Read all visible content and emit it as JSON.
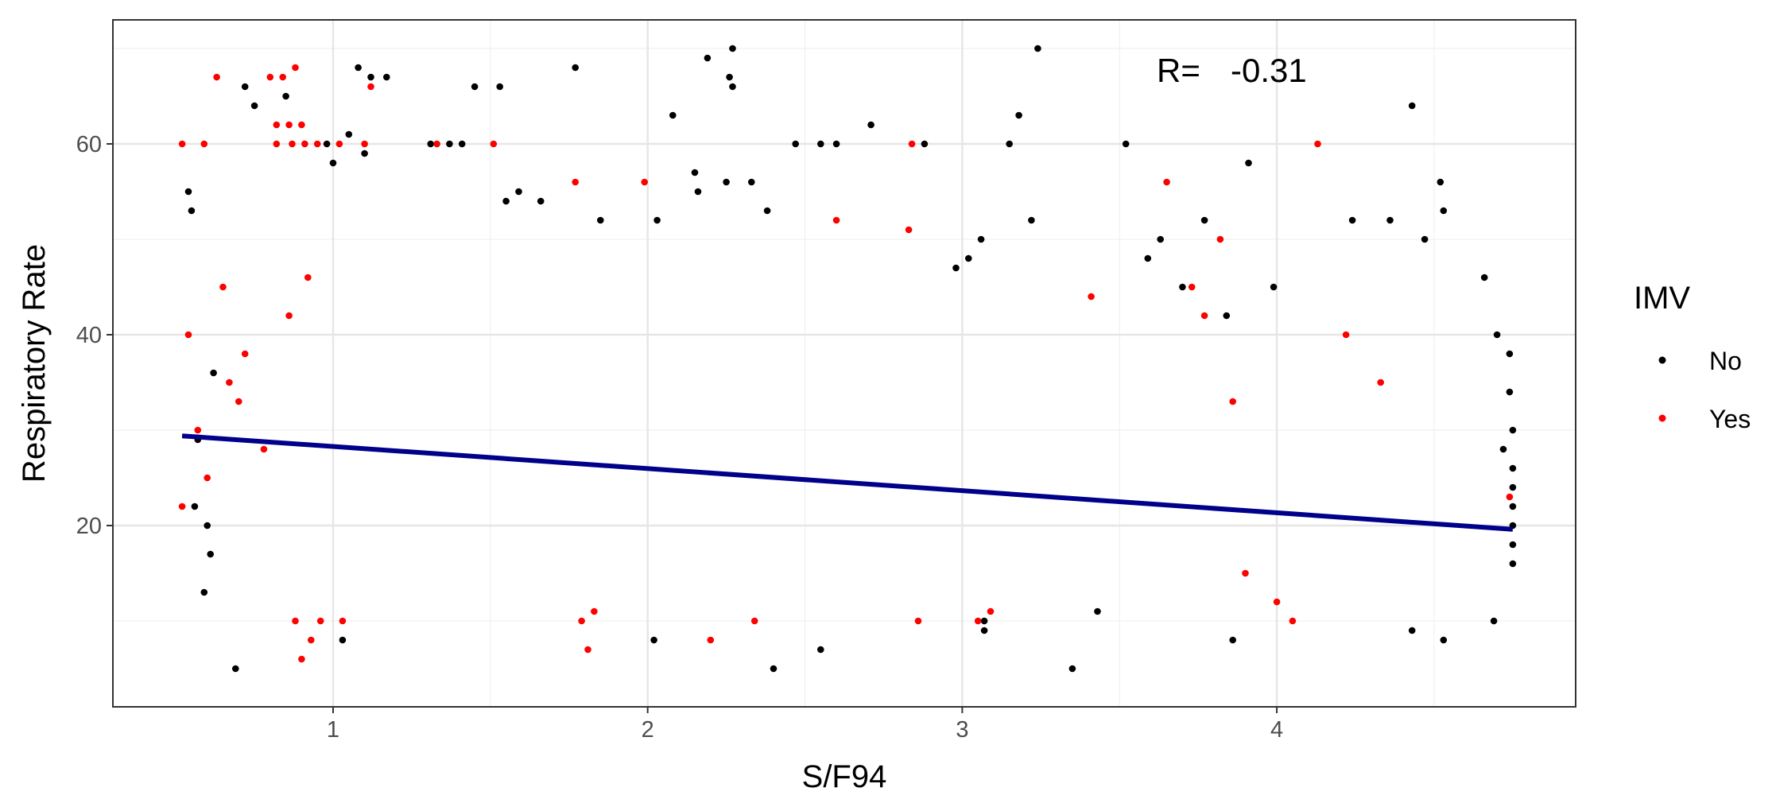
{
  "chart_data": {
    "type": "scatter",
    "xlabel": "S/F94",
    "ylabel": "Respiratory Rate",
    "xlim": [
      0.3,
      4.95
    ],
    "ylim": [
      1,
      73
    ],
    "x_ticks": [
      1,
      2,
      3,
      4
    ],
    "x_tick_labels": [
      "1",
      "2",
      "3",
      "4"
    ],
    "y_ticks": [
      20,
      40,
      60
    ],
    "y_tick_labels": [
      "20",
      "40",
      "60"
    ],
    "x_minor": [
      1.5,
      2.5,
      3.5,
      4.5
    ],
    "y_minor": [
      10,
      30,
      50,
      70
    ],
    "grid": true,
    "legend": {
      "title": "IMV",
      "position": "right",
      "entries": [
        {
          "label": "No",
          "color": "#000000"
        },
        {
          "label": "Yes",
          "color": "#ff0000"
        }
      ]
    },
    "annotation": {
      "label": "R=",
      "value": "-0.31"
    },
    "trend_line": {
      "color": "#00008b",
      "x": [
        0.52,
        4.75
      ],
      "y": [
        29.4,
        19.6
      ]
    },
    "series": [
      {
        "name": "No",
        "color": "#000000",
        "points": [
          [
            0.72,
            66
          ],
          [
            0.75,
            64
          ],
          [
            0.85,
            65
          ],
          [
            1.08,
            68
          ],
          [
            1.12,
            67
          ],
          [
            1.17,
            67
          ],
          [
            1.45,
            66
          ],
          [
            1.53,
            66
          ],
          [
            1.77,
            68
          ],
          [
            2.19,
            69
          ],
          [
            2.27,
            70
          ],
          [
            2.26,
            67
          ],
          [
            2.27,
            66
          ],
          [
            3.24,
            70
          ],
          [
            4.43,
            64
          ],
          [
            2.08,
            63
          ],
          [
            3.18,
            63
          ],
          [
            2.47,
            60
          ],
          [
            3.15,
            60
          ],
          [
            3.52,
            60
          ],
          [
            3.91,
            58
          ],
          [
            2.15,
            57
          ],
          [
            2.25,
            56
          ],
          [
            2.33,
            56
          ],
          [
            2.38,
            53
          ],
          [
            4.52,
            56
          ],
          [
            4.53,
            53
          ],
          [
            3.22,
            52
          ],
          [
            2.71,
            62
          ],
          [
            1.37,
            60
          ],
          [
            1.41,
            60
          ],
          [
            1.31,
            60
          ],
          [
            1.59,
            55
          ],
          [
            1.55,
            54
          ],
          [
            1.66,
            54
          ],
          [
            1.85,
            52
          ],
          [
            2.03,
            52
          ],
          [
            0.69,
            5
          ],
          [
            2.4,
            5
          ],
          [
            3.35,
            5
          ],
          [
            4.43,
            9
          ],
          [
            4.53,
            8
          ],
          [
            3.86,
            8
          ],
          [
            2.55,
            7
          ],
          [
            2.02,
            8
          ],
          [
            1.03,
            8
          ],
          [
            0.59,
            13
          ],
          [
            0.61,
            17
          ],
          [
            3.07,
            9
          ],
          [
            3.07,
            10
          ],
          [
            4.69,
            10
          ],
          [
            3.43,
            11
          ],
          [
            4.66,
            46
          ],
          [
            4.7,
            40
          ],
          [
            4.74,
            38
          ],
          [
            4.74,
            34
          ],
          [
            4.75,
            30
          ],
          [
            4.72,
            28
          ],
          [
            4.75,
            26
          ],
          [
            4.75,
            24
          ],
          [
            4.75,
            22
          ],
          [
            4.75,
            20
          ],
          [
            4.75,
            18
          ],
          [
            4.75,
            16
          ],
          [
            3.63,
            50
          ],
          [
            3.99,
            45
          ],
          [
            4.24,
            52
          ],
          [
            4.36,
            52
          ],
          [
            4.47,
            50
          ],
          [
            3.77,
            52
          ],
          [
            3.59,
            48
          ],
          [
            3.7,
            45
          ],
          [
            3.84,
            42
          ],
          [
            3.06,
            50
          ],
          [
            3.02,
            48
          ],
          [
            2.98,
            47
          ],
          [
            2.55,
            60
          ],
          [
            2.6,
            60
          ],
          [
            2.88,
            60
          ],
          [
            2.16,
            55
          ],
          [
            0.6,
            20
          ],
          [
            0.56,
            22
          ],
          [
            0.57,
            29
          ],
          [
            0.62,
            36
          ],
          [
            0.55,
            53
          ],
          [
            0.54,
            55
          ],
          [
            1.0,
            58
          ],
          [
            0.98,
            60
          ],
          [
            1.05,
            61
          ],
          [
            1.1,
            59
          ]
        ]
      },
      {
        "name": "Yes",
        "color": "#ff0000",
        "points": [
          [
            0.63,
            67
          ],
          [
            0.8,
            67
          ],
          [
            0.84,
            67
          ],
          [
            0.88,
            68
          ],
          [
            1.12,
            66
          ],
          [
            0.52,
            60
          ],
          [
            0.59,
            60
          ],
          [
            0.82,
            62
          ],
          [
            0.86,
            62
          ],
          [
            0.9,
            62
          ],
          [
            0.82,
            60
          ],
          [
            0.87,
            60
          ],
          [
            0.91,
            60
          ],
          [
            0.95,
            60
          ],
          [
            1.02,
            60
          ],
          [
            1.1,
            60
          ],
          [
            1.51,
            60
          ],
          [
            2.84,
            60
          ],
          [
            4.13,
            60
          ],
          [
            1.33,
            60
          ],
          [
            1.77,
            56
          ],
          [
            1.99,
            56
          ],
          [
            2.6,
            52
          ],
          [
            2.83,
            51
          ],
          [
            3.65,
            56
          ],
          [
            3.82,
            50
          ],
          [
            0.9,
            6
          ],
          [
            0.93,
            8
          ],
          [
            1.81,
            7
          ],
          [
            2.2,
            8
          ],
          [
            2.34,
            10
          ],
          [
            2.86,
            10
          ],
          [
            3.05,
            10
          ],
          [
            4.05,
            10
          ],
          [
            0.88,
            10
          ],
          [
            0.96,
            10
          ],
          [
            1.03,
            10
          ],
          [
            1.79,
            10
          ],
          [
            1.83,
            11
          ],
          [
            3.09,
            11
          ],
          [
            3.86,
            33
          ],
          [
            3.9,
            15
          ],
          [
            4.0,
            12
          ],
          [
            4.22,
            40
          ],
          [
            4.33,
            35
          ],
          [
            4.74,
            23
          ],
          [
            3.41,
            44
          ],
          [
            3.77,
            42
          ],
          [
            3.73,
            45
          ],
          [
            0.52,
            22
          ],
          [
            0.54,
            40
          ],
          [
            0.57,
            30
          ],
          [
            0.6,
            25
          ],
          [
            0.67,
            35
          ],
          [
            0.7,
            33
          ],
          [
            0.65,
            45
          ],
          [
            0.72,
            38
          ],
          [
            0.78,
            28
          ],
          [
            0.86,
            42
          ],
          [
            0.92,
            46
          ]
        ]
      }
    ]
  }
}
